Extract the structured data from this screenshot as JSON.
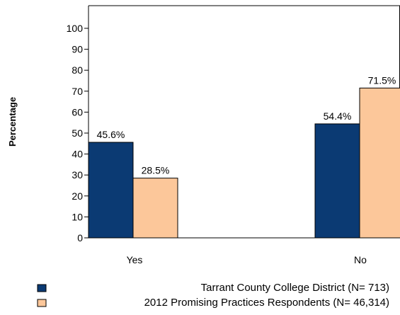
{
  "chart_data": {
    "type": "bar",
    "ylabel": "Percentage",
    "xlabel": "",
    "categories": [
      "Yes",
      "No"
    ],
    "yticks": [
      0,
      10,
      20,
      30,
      40,
      50,
      60,
      70,
      80,
      90,
      100
    ],
    "ylim": [
      0,
      108
    ],
    "series": [
      {
        "name": "Tarrant County College District  (N= 713)",
        "values": [
          45.6,
          54.4
        ],
        "labels": [
          "45.6%",
          "54.4%"
        ],
        "color": "#0b3a73"
      },
      {
        "name": "2012 Promising Practices Respondents (N= 46,314)",
        "values": [
          28.5,
          71.5
        ],
        "labels": [
          "28.5%",
          "71.5%"
        ],
        "color": "#fcc79a"
      }
    ],
    "legend_position": "bottom",
    "grid": false
  }
}
